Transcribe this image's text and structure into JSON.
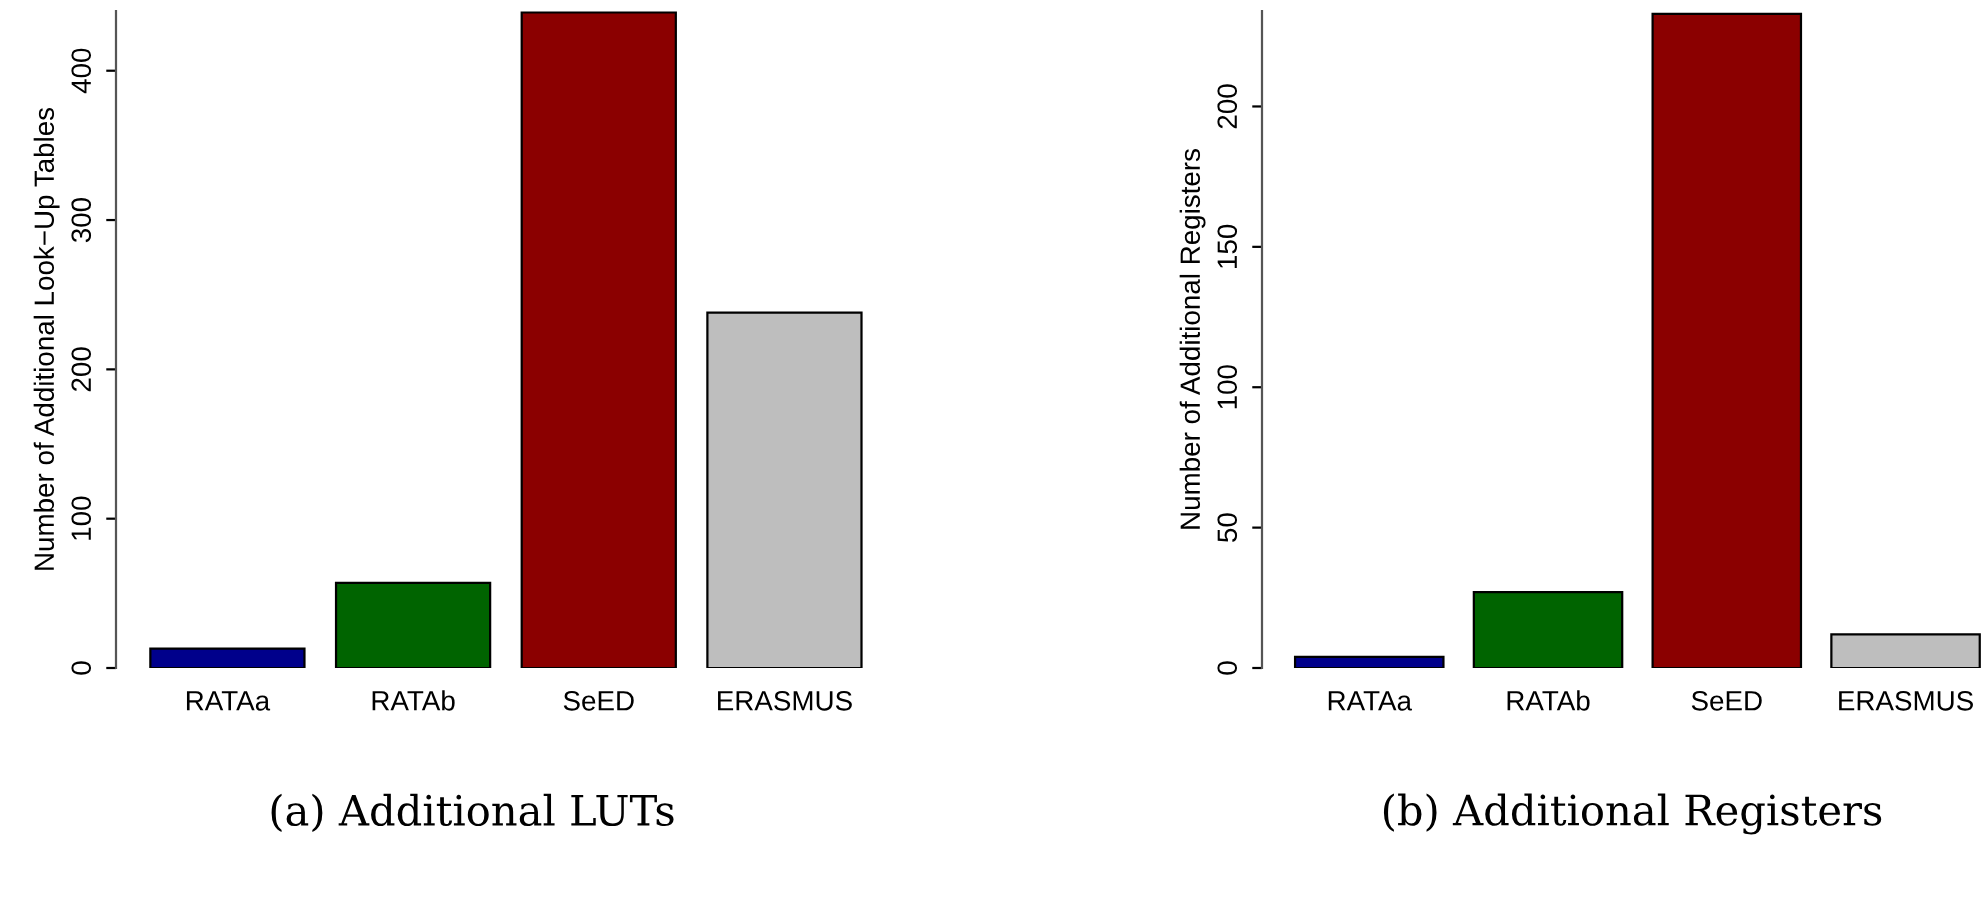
{
  "chart_data": [
    {
      "type": "bar",
      "ylabel": "Number of Additional Look−Up Tables",
      "categories": [
        "RATAa",
        "RATAb",
        "SeED",
        "ERASMUS"
      ],
      "values": [
        13,
        57,
        439,
        238
      ],
      "colors": [
        "#00008b",
        "#006400",
        "#8b0000",
        "#bebebe"
      ],
      "ylim": [
        0,
        440
      ],
      "yticks": [
        0,
        100,
        200,
        300,
        400
      ],
      "grid": false,
      "legend": false,
      "annotations": [
        "(a) Additional LUTs"
      ]
    },
    {
      "type": "bar",
      "ylabel": "Number of Additional Registers",
      "categories": [
        "RATAa",
        "RATAb",
        "SeED",
        "ERASMUS"
      ],
      "values": [
        4,
        27,
        233,
        12
      ],
      "colors": [
        "#00008b",
        "#006400",
        "#8b0000",
        "#bebebe"
      ],
      "ylim": [
        0,
        234
      ],
      "yticks": [
        0,
        50,
        100,
        150,
        200
      ],
      "grid": false,
      "legend": false,
      "annotations": [
        "(b) Additional Registers"
      ]
    }
  ]
}
